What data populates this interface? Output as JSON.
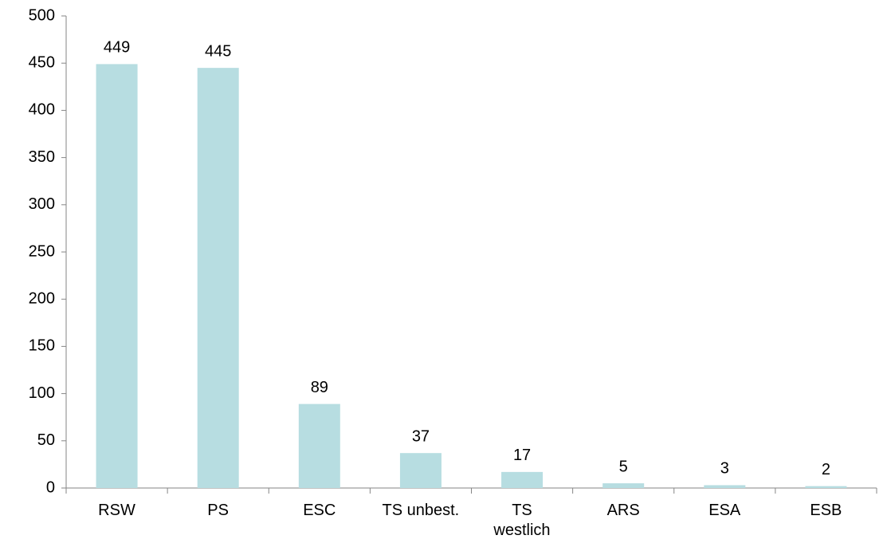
{
  "chart_data": {
    "type": "bar",
    "categories": [
      "RSW",
      "PS",
      "ESC",
      "TS unbest.",
      "TS\nwestlich",
      "ARS",
      "ESA",
      "ESB"
    ],
    "values": [
      449,
      445,
      89,
      37,
      17,
      5,
      3,
      2
    ],
    "color": "#b7dde1",
    "ylim": [
      0,
      500
    ],
    "yticks": [
      0,
      50,
      100,
      150,
      200,
      250,
      300,
      350,
      400,
      450,
      500
    ],
    "grid": false
  }
}
